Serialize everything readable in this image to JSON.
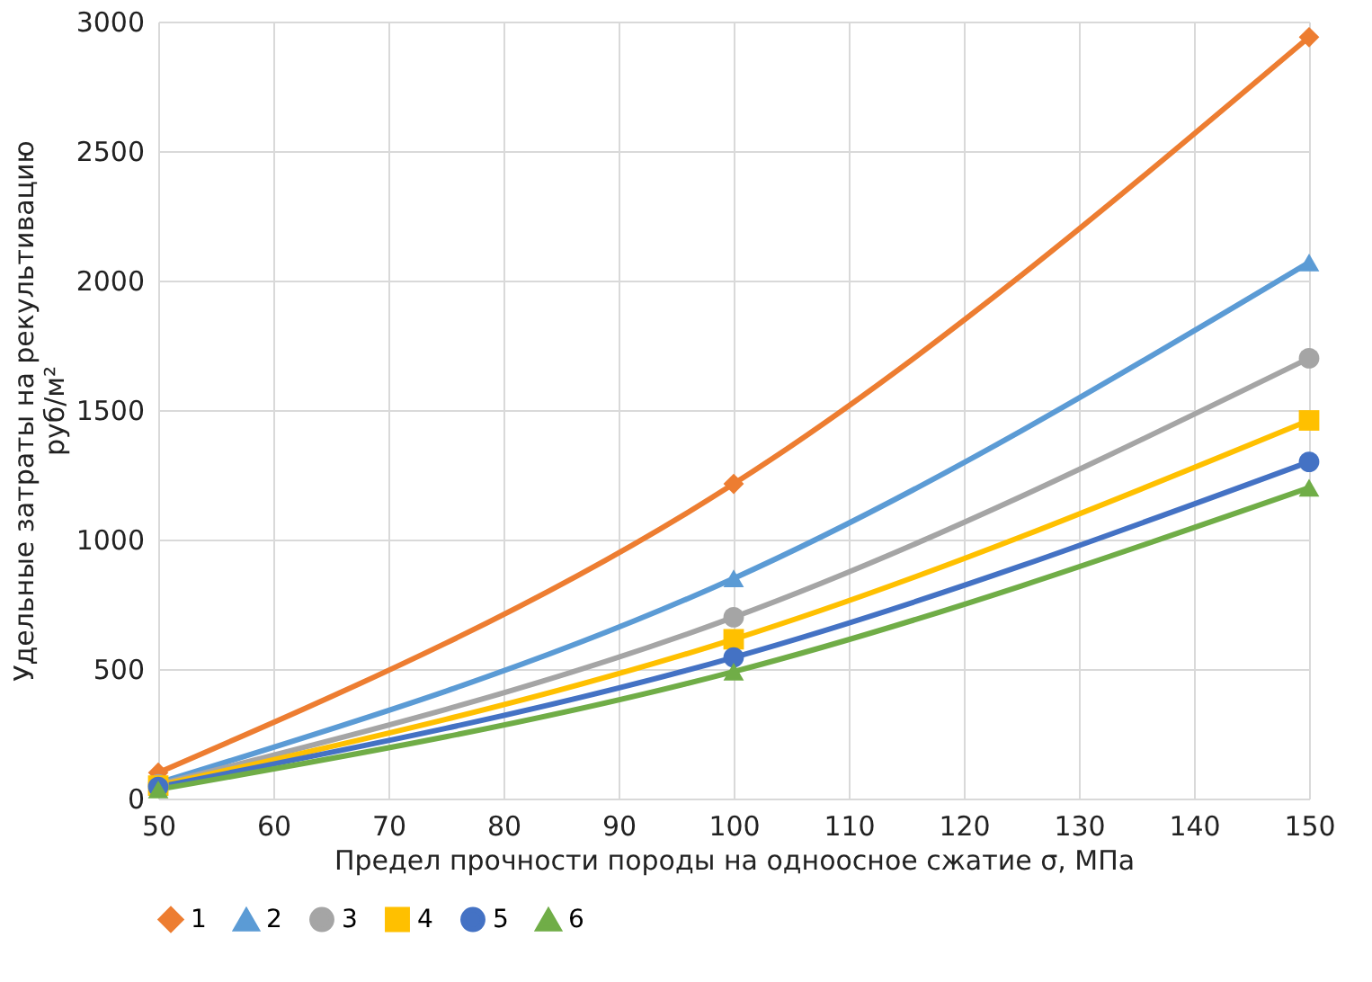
{
  "chart_data": {
    "type": "line",
    "x": [
      50,
      100,
      150
    ],
    "series": [
      {
        "name": "1",
        "color": "#ed7d31",
        "marker": "diamond",
        "values": [
          100,
          1215,
          2940
        ]
      },
      {
        "name": "2",
        "color": "#5b9bd5",
        "marker": "triangle",
        "values": [
          60,
          850,
          2070
        ]
      },
      {
        "name": "3",
        "color": "#a5a5a5",
        "marker": "circle",
        "values": [
          55,
          700,
          1700
        ]
      },
      {
        "name": "4",
        "color": "#ffc000",
        "marker": "square",
        "values": [
          50,
          615,
          1460
        ]
      },
      {
        "name": "5",
        "color": "#4472c4",
        "marker": "circle",
        "values": [
          45,
          545,
          1300
        ]
      },
      {
        "name": "6",
        "color": "#70ad47",
        "marker": "triangle",
        "values": [
          35,
          490,
          1200
        ]
      }
    ],
    "xlabel": "Предел прочности породы на одноосное сжатие σ, МПа",
    "ylabel": "Удельные затраты на рекультивацию\nруб/м²",
    "xlim": [
      50,
      150
    ],
    "xticks": [
      50,
      60,
      70,
      80,
      90,
      100,
      110,
      120,
      130,
      140,
      150
    ],
    "ylim": [
      0,
      3000
    ],
    "yticks": [
      0,
      500,
      1000,
      1500,
      2000,
      2500,
      3000
    ],
    "grid": true,
    "legend": "bottom",
    "line_style": "solid"
  }
}
